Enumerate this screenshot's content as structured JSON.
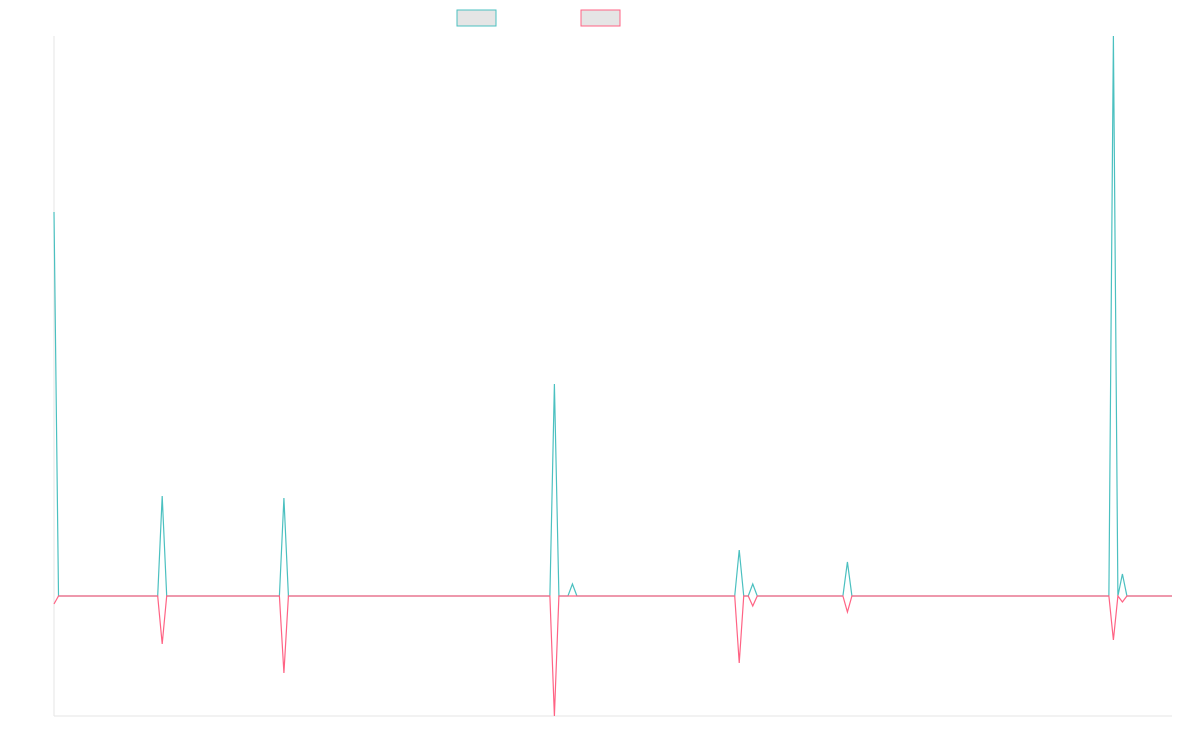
{
  "chart_data": {
    "type": "line",
    "x": [
      0,
      1,
      23,
      24,
      25,
      50,
      51,
      52,
      110,
      111,
      112,
      114,
      115,
      116,
      151,
      152,
      153,
      154,
      155,
      156,
      175,
      176,
      177,
      234,
      235,
      236,
      237,
      238,
      248
    ],
    "series": [
      {
        "color": "#4bc0c0",
        "values": [
          96,
          0,
          0,
          25,
          0,
          0,
          24.5,
          0,
          0,
          53,
          0,
          0,
          3,
          0,
          0,
          11.5,
          0,
          0,
          3,
          0,
          0,
          8.5,
          0,
          0,
          140,
          0,
          5.5,
          0,
          0
        ]
      },
      {
        "color": "#ff6384",
        "values": [
          -2,
          0,
          0,
          -12,
          0,
          0,
          -19.25,
          0,
          0,
          -30,
          0,
          0,
          0,
          0,
          0,
          -16.75,
          0,
          0,
          -2.5,
          0,
          0,
          -4,
          0,
          0,
          -11,
          0,
          -1.5,
          0,
          0
        ]
      }
    ],
    "xlim": [
      0,
      248
    ],
    "ylim": [
      -30,
      140
    ],
    "grid": false,
    "legend": "top"
  }
}
